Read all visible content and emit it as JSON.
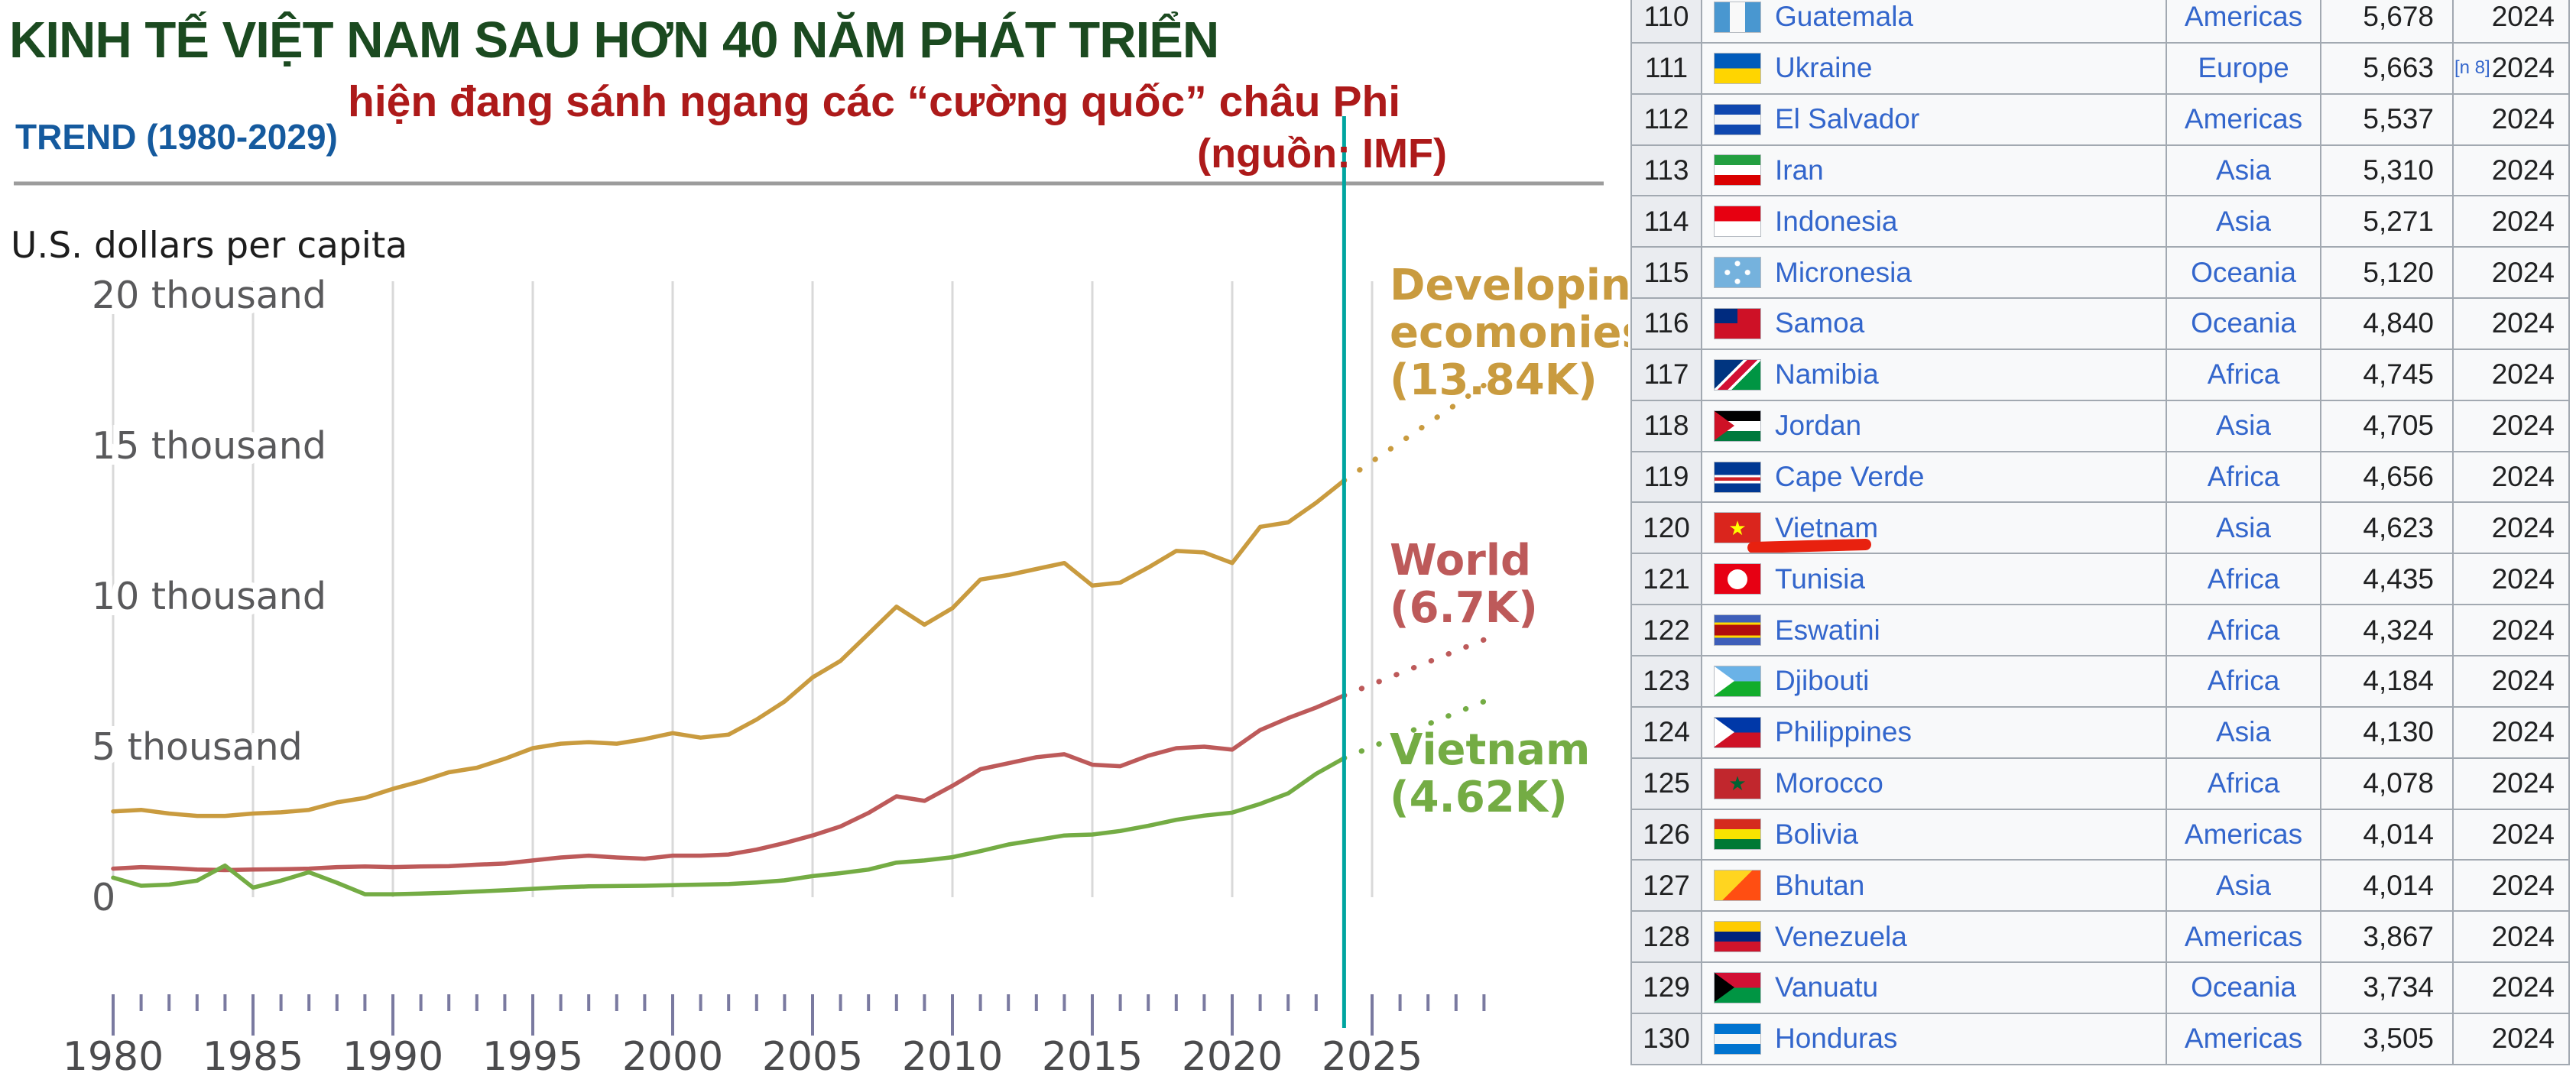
{
  "header": {
    "title": "KINH TẾ VIỆT NAM SAU HƠN 40 NĂM PHÁT TRIỂN",
    "subtitle": "hiện đang sánh ngang các “cường quốc” châu Phi",
    "trend_label": "TREND (1980-2029)",
    "source_label": "(nguồn: IMF)",
    "colors": {
      "title": "#1B4A20",
      "subtitle": "#AD1A1A",
      "trend": "#155A9E",
      "source": "#AD1A1A"
    }
  },
  "chart_data": {
    "type": "line",
    "title": "KINH TẾ VIỆT NAM SAU HƠN 40 NĂM PHÁT TRIỂN — TREND (1980-2029)",
    "ylabel": "U.S. dollars per capita",
    "unit_label": "U.S. dollars per capita",
    "units": "thousands of U.S. dollars per capita",
    "ylim": [
      0,
      20
    ],
    "x_start": 1980,
    "x_end": 2029,
    "grid_on": true,
    "years": [
      1980,
      1981,
      1982,
      1983,
      1984,
      1985,
      1986,
      1987,
      1988,
      1989,
      1990,
      1991,
      1992,
      1993,
      1994,
      1995,
      1996,
      1997,
      1998,
      1999,
      2000,
      2001,
      2002,
      2003,
      2004,
      2005,
      2006,
      2007,
      2008,
      2009,
      2010,
      2011,
      2012,
      2013,
      2014,
      2015,
      2016,
      2017,
      2018,
      2019,
      2020,
      2021,
      2022,
      2023,
      2024
    ],
    "series": [
      {
        "name": "developing-economies",
        "label_lines": [
          "Developing",
          "ecomonies"
        ],
        "value_label": "(13.84K)",
        "color": "#C99B3F",
        "values": [
          2.85,
          2.9,
          2.78,
          2.7,
          2.7,
          2.78,
          2.82,
          2.9,
          3.15,
          3.3,
          3.6,
          3.85,
          4.15,
          4.3,
          4.6,
          4.95,
          5.1,
          5.15,
          5.1,
          5.25,
          5.45,
          5.3,
          5.4,
          5.9,
          6.5,
          7.3,
          7.85,
          8.75,
          9.65,
          9.05,
          9.6,
          10.55,
          10.7,
          10.9,
          11.1,
          10.35,
          10.45,
          10.95,
          11.5,
          11.45,
          11.1,
          12.3,
          12.45,
          13.1,
          13.84
        ]
      },
      {
        "name": "world",
        "label_lines": [
          "World"
        ],
        "value_label": "(6.7K)",
        "color": "#BD5A5A",
        "values": [
          0.95,
          1.0,
          0.97,
          0.92,
          0.9,
          0.92,
          0.93,
          0.95,
          1.0,
          1.02,
          1.0,
          1.02,
          1.03,
          1.08,
          1.12,
          1.22,
          1.32,
          1.38,
          1.32,
          1.28,
          1.38,
          1.38,
          1.42,
          1.58,
          1.8,
          2.05,
          2.35,
          2.8,
          3.35,
          3.2,
          3.7,
          4.25,
          4.45,
          4.65,
          4.75,
          4.4,
          4.35,
          4.7,
          4.95,
          5.0,
          4.9,
          5.55,
          5.95,
          6.3,
          6.7
        ]
      },
      {
        "name": "vietnam",
        "label_lines": [
          "Vietnam"
        ],
        "value_label": "(4.62K)",
        "color": "#74AC44",
        "values": [
          0.65,
          0.38,
          0.42,
          0.55,
          1.05,
          0.32,
          0.55,
          0.83,
          0.48,
          0.1,
          0.1,
          0.12,
          0.15,
          0.19,
          0.23,
          0.28,
          0.33,
          0.36,
          0.37,
          0.38,
          0.4,
          0.42,
          0.44,
          0.49,
          0.56,
          0.7,
          0.8,
          0.92,
          1.15,
          1.22,
          1.33,
          1.53,
          1.75,
          1.9,
          2.05,
          2.08,
          2.2,
          2.37,
          2.57,
          2.71,
          2.81,
          3.1,
          3.45,
          4.1,
          4.62
        ]
      }
    ],
    "projections": [
      {
        "series": "developing-economies",
        "from": {
          "year": 2024,
          "value": 13.84
        },
        "to": {
          "year": 2029,
          "value": 17.0
        }
      },
      {
        "series": "world",
        "from": {
          "year": 2024,
          "value": 6.7
        },
        "to": {
          "year": 2029,
          "value": 8.55
        }
      },
      {
        "series": "vietnam",
        "from": {
          "year": 2024,
          "value": 4.62
        },
        "to": {
          "year": 2029,
          "value": 6.5
        }
      }
    ],
    "marker_year": 2024,
    "marker_color": "#00A5A0",
    "yticks": [
      {
        "value": 20,
        "label": "20 thousand"
      },
      {
        "value": 15,
        "label": "15 thousand"
      },
      {
        "value": 10,
        "label": "10 thousand"
      },
      {
        "value": 5,
        "label": "5 thousand"
      },
      {
        "value": 0,
        "label": "0"
      }
    ],
    "xticks_labeled": [
      1980,
      1985,
      1990,
      1995,
      2000,
      2005,
      2010,
      2015,
      2020,
      2025
    ],
    "grid_color": "#D9D9D9",
    "tick_color": "#7A7AA0",
    "x_label_color": "#4B4B4D",
    "y_label_color": "#59595B",
    "legend_position": "right"
  },
  "table": {
    "link_color": "#3366cc",
    "rows": [
      {
        "rank": "110",
        "country": "Guatemala",
        "region": "Americas",
        "value": "5,678",
        "year": "2024",
        "note": "",
        "flag": {
          "dir": "v",
          "stripes": [
            "#4997D0",
            "#F9F9F9",
            "#4997D0"
          ]
        }
      },
      {
        "rank": "111",
        "country": "Ukraine",
        "region": "Europe",
        "value": "5,663",
        "year": "2024",
        "note": "[n 8]",
        "flag": {
          "dir": "h",
          "stripes": [
            "#005BBB",
            "#FFD500"
          ]
        }
      },
      {
        "rank": "112",
        "country": "El Salvador",
        "region": "Americas",
        "value": "5,537",
        "year": "2024",
        "note": "",
        "flag": {
          "dir": "h",
          "stripes": [
            "#0F47AF",
            "#F5F5F5",
            "#0F47AF"
          ]
        }
      },
      {
        "rank": "113",
        "country": "Iran",
        "region": "Asia",
        "value": "5,310",
        "year": "2024",
        "note": "",
        "flag": {
          "dir": "h",
          "stripes": [
            "#239F40",
            "#FFFFFF",
            "#DA0000"
          ]
        }
      },
      {
        "rank": "114",
        "country": "Indonesia",
        "region": "Asia",
        "value": "5,271",
        "year": "2024",
        "note": "",
        "flag": {
          "dir": "h",
          "stripes": [
            "#E70011",
            "#FFFFFF"
          ]
        }
      },
      {
        "rank": "115",
        "country": "Micronesia",
        "region": "Oceania",
        "value": "5,120",
        "year": "2024",
        "note": "",
        "flag": {
          "dir": "h",
          "stripes": [
            "#75B2DD"
          ],
          "dots": "#FFFFFF"
        }
      },
      {
        "rank": "116",
        "country": "Samoa",
        "region": "Oceania",
        "value": "4,840",
        "year": "2024",
        "note": "",
        "flag": {
          "dir": "h",
          "stripes": [
            "#CE1126"
          ],
          "canton": "#002B7F"
        }
      },
      {
        "rank": "117",
        "country": "Namibia",
        "region": "Africa",
        "value": "4,745",
        "year": "2024",
        "note": "",
        "flag": {
          "dir": "d",
          "stripes": [
            "#003580",
            "#FFFFFF",
            "#D21034",
            "#FFFFFF",
            "#009543"
          ],
          "weights": [
            38,
            5,
            14,
            5,
            38
          ]
        }
      },
      {
        "rank": "118",
        "country": "Jordan",
        "region": "Asia",
        "value": "4,705",
        "year": "2024",
        "note": "",
        "flag": {
          "dir": "h",
          "stripes": [
            "#000000",
            "#FFFFFF",
            "#007A3D"
          ],
          "tri": "#CE1126"
        }
      },
      {
        "rank": "119",
        "country": "Cape Verde",
        "region": "Africa",
        "value": "4,656",
        "year": "2024",
        "note": "",
        "flag": {
          "dir": "h",
          "stripes": [
            "#003893",
            "#003893",
            "#FFFFFF",
            "#CF2027",
            "#FFFFFF",
            "#003893"
          ],
          "weights": [
            30,
            12,
            8,
            12,
            8,
            30
          ]
        }
      },
      {
        "rank": "120",
        "country": "Vietnam",
        "region": "Asia",
        "value": "4,623",
        "year": "2024",
        "note": "",
        "highlight": true,
        "flag": {
          "dir": "h",
          "stripes": [
            "#DA251D"
          ],
          "star": "#FFFF00"
        }
      },
      {
        "rank": "121",
        "country": "Tunisia",
        "region": "Africa",
        "value": "4,435",
        "year": "2024",
        "note": "",
        "flag": {
          "dir": "h",
          "stripes": [
            "#E70013"
          ],
          "circle": "#FFFFFF"
        }
      },
      {
        "rank": "122",
        "country": "Eswatini",
        "region": "Africa",
        "value": "4,324",
        "year": "2024",
        "note": "",
        "flag": {
          "dir": "h",
          "stripes": [
            "#3E5EB9",
            "#FFD900",
            "#B10C0C",
            "#FFD900",
            "#3E5EB9"
          ],
          "weights": [
            24,
            8,
            36,
            8,
            24
          ]
        }
      },
      {
        "rank": "123",
        "country": "Djibouti",
        "region": "Africa",
        "value": "4,184",
        "year": "2024",
        "note": "",
        "flag": {
          "dir": "h",
          "stripes": [
            "#6AB2E7",
            "#12AD2B"
          ],
          "tri": "#FFFFFF"
        }
      },
      {
        "rank": "124",
        "country": "Philippines",
        "region": "Asia",
        "value": "4,130",
        "year": "2024",
        "note": "",
        "flag": {
          "dir": "h",
          "stripes": [
            "#0038A8",
            "#CE1126"
          ],
          "tri": "#FFFFFF"
        }
      },
      {
        "rank": "125",
        "country": "Morocco",
        "region": "Africa",
        "value": "4,078",
        "year": "2024",
        "note": "",
        "flag": {
          "dir": "h",
          "stripes": [
            "#C1272D"
          ],
          "star": "#006233"
        }
      },
      {
        "rank": "126",
        "country": "Bolivia",
        "region": "Americas",
        "value": "4,014",
        "year": "2024",
        "note": "",
        "flag": {
          "dir": "h",
          "stripes": [
            "#D52B1E",
            "#F9E300",
            "#007934"
          ]
        }
      },
      {
        "rank": "127",
        "country": "Bhutan",
        "region": "Asia",
        "value": "4,014",
        "year": "2024",
        "note": "",
        "flag": {
          "dir": "d",
          "stripes": [
            "#FFD520",
            "#FF4E12"
          ],
          "weights": [
            50,
            50
          ]
        }
      },
      {
        "rank": "128",
        "country": "Venezuela",
        "region": "Americas",
        "value": "3,867",
        "year": "2024",
        "note": "",
        "flag": {
          "dir": "h",
          "stripes": [
            "#FFCC00",
            "#00247D",
            "#CF142B"
          ]
        }
      },
      {
        "rank": "129",
        "country": "Vanuatu",
        "region": "Oceania",
        "value": "3,734",
        "year": "2024",
        "note": "",
        "flag": {
          "dir": "h",
          "stripes": [
            "#D21034",
            "#009543"
          ],
          "tri": "#000000"
        }
      },
      {
        "rank": "130",
        "country": "Honduras",
        "region": "Americas",
        "value": "3,505",
        "year": "2024",
        "note": "",
        "flag": {
          "dir": "h",
          "stripes": [
            "#0073CF",
            "#F5F5F5",
            "#0073CF"
          ]
        }
      }
    ]
  },
  "annotations": {
    "vietnam_marker_color": "#E8210F"
  }
}
